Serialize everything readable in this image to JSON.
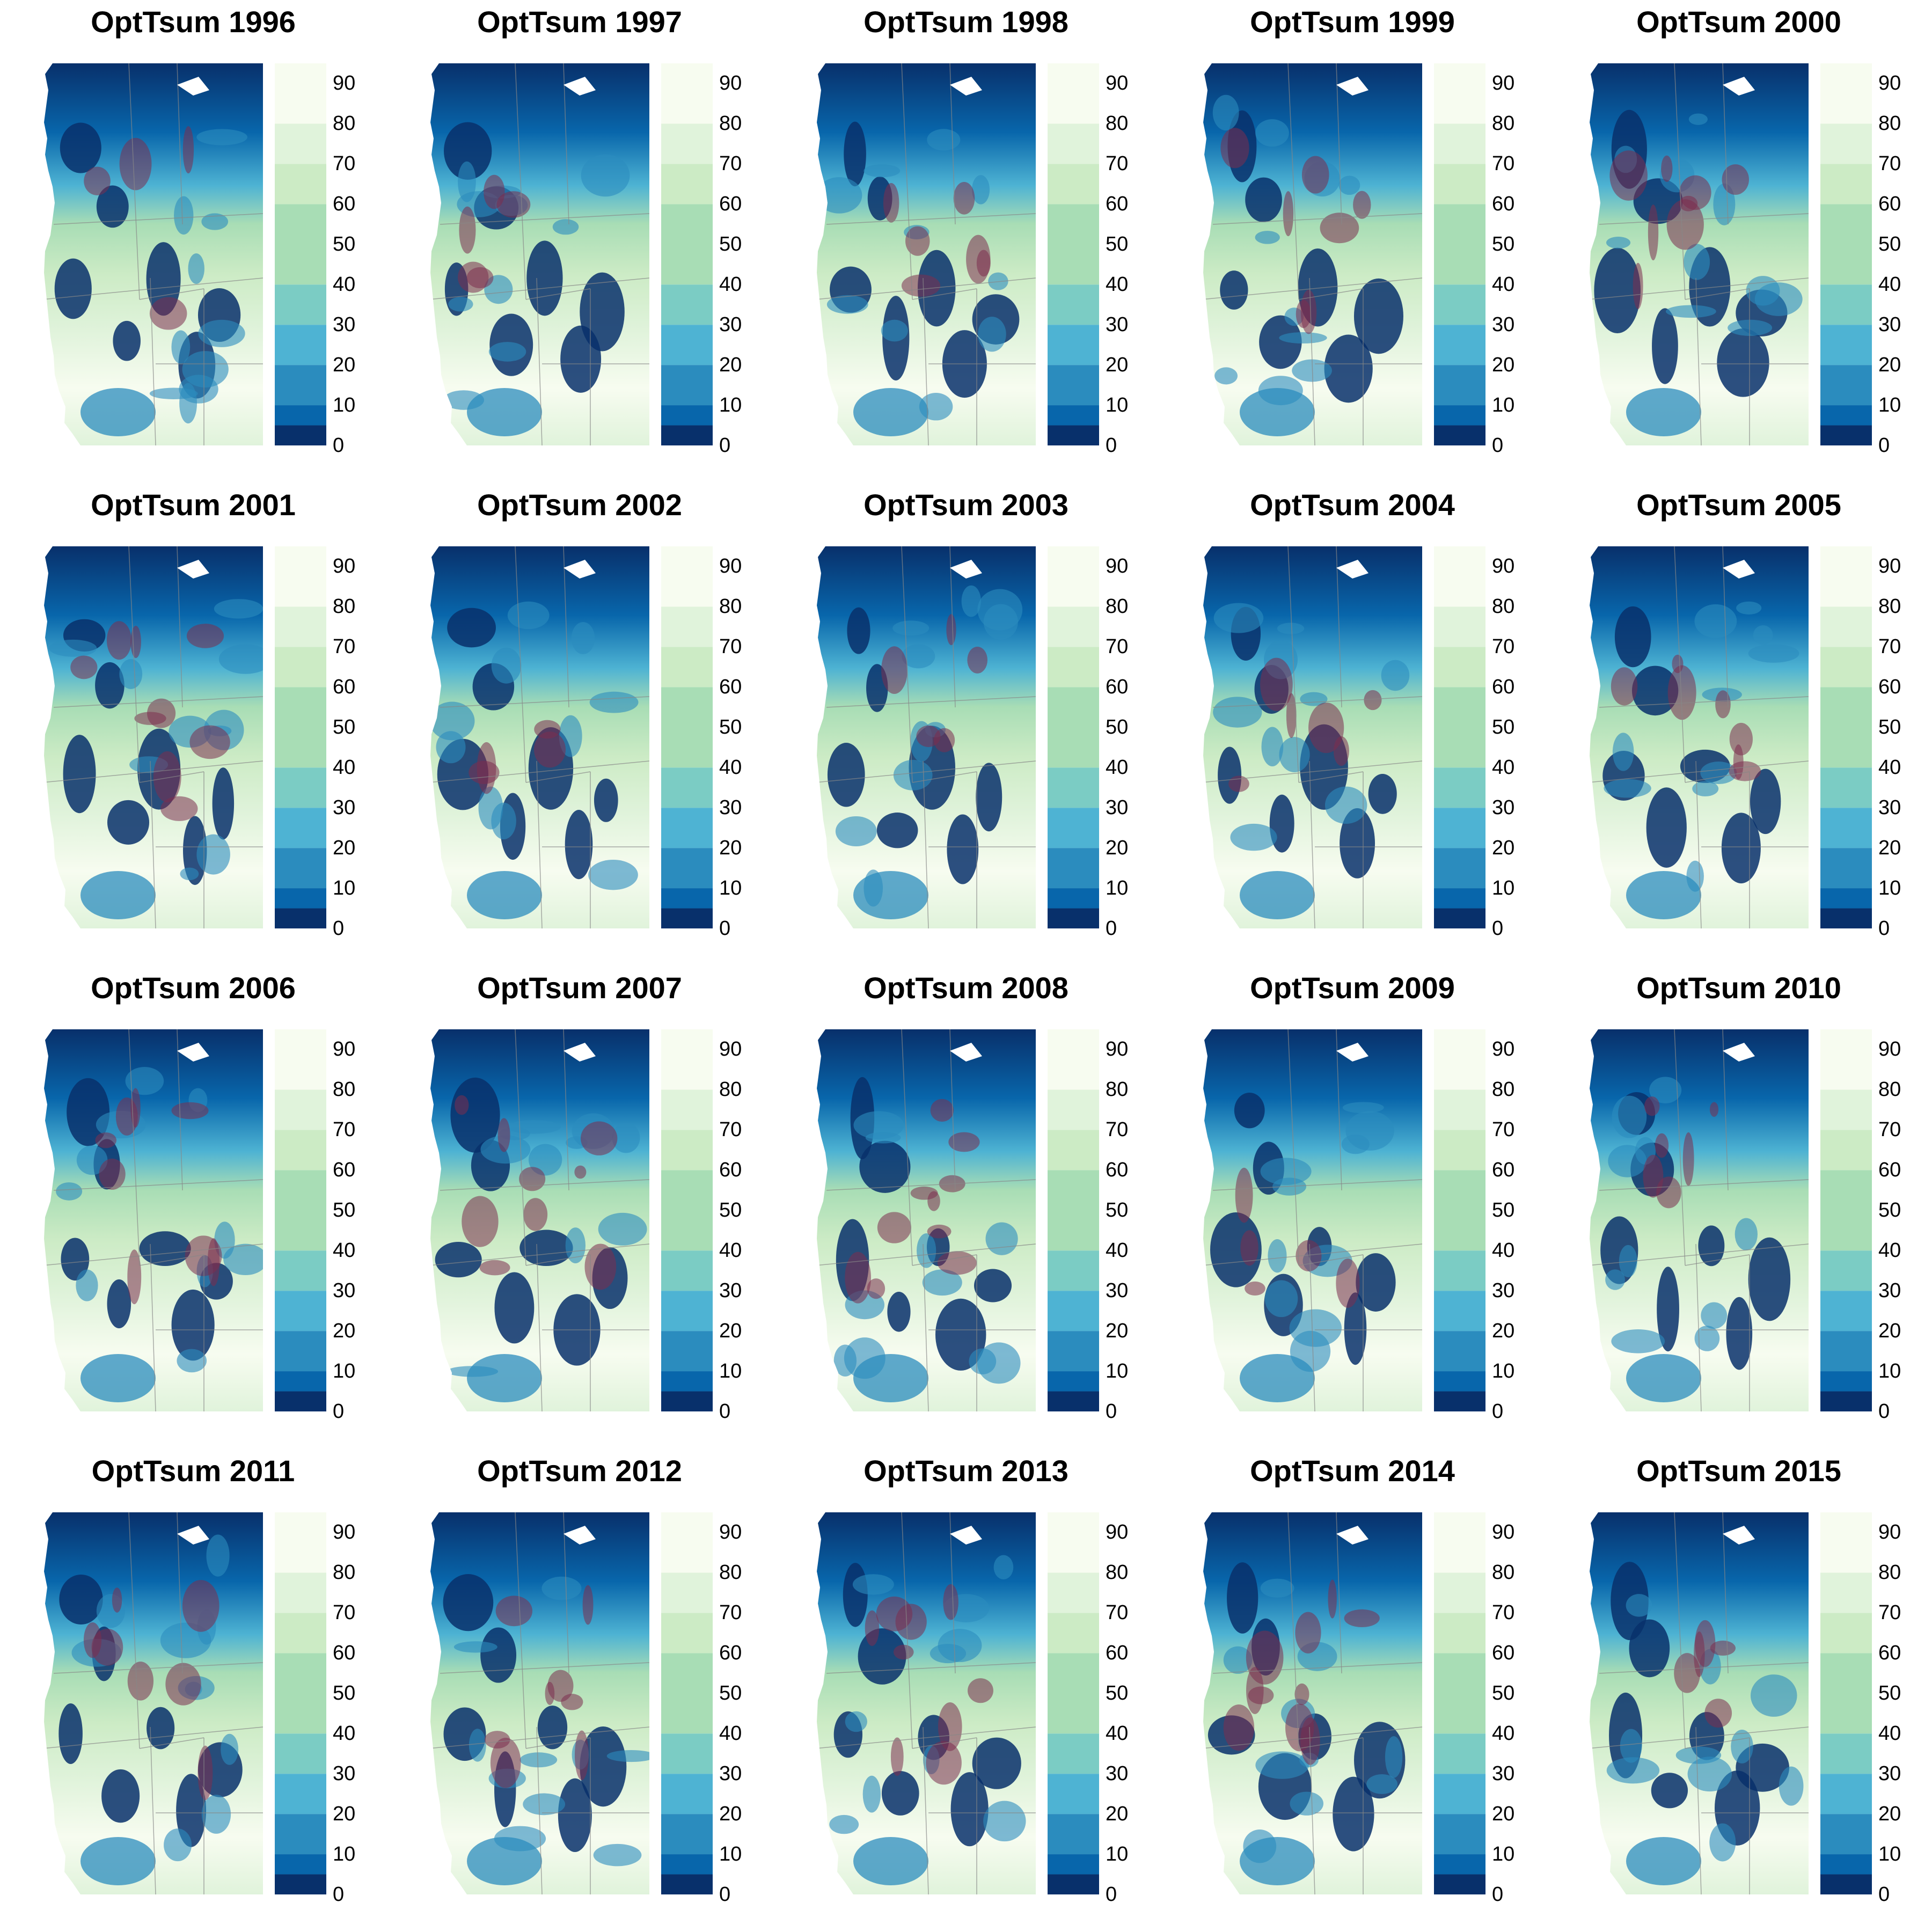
{
  "chart_data": {
    "type": "heatmap",
    "title_prefix": "OptTsum",
    "panels": [
      {
        "title": "OptTsum 1996",
        "year": 1996
      },
      {
        "title": "OptTsum 1997",
        "year": 1997
      },
      {
        "title": "OptTsum 1998",
        "year": 1998
      },
      {
        "title": "OptTsum 1999",
        "year": 1999
      },
      {
        "title": "OptTsum 2000",
        "year": 2000
      },
      {
        "title": "OptTsum 2001",
        "year": 2001
      },
      {
        "title": "OptTsum 2002",
        "year": 2002
      },
      {
        "title": "OptTsum 2003",
        "year": 2003
      },
      {
        "title": "OptTsum 2004",
        "year": 2004
      },
      {
        "title": "OptTsum 2005",
        "year": 2005
      },
      {
        "title": "OptTsum 2006",
        "year": 2006
      },
      {
        "title": "OptTsum 2007",
        "year": 2007
      },
      {
        "title": "OptTsum 2008",
        "year": 2008
      },
      {
        "title": "OptTsum 2009",
        "year": 2009
      },
      {
        "title": "OptTsum 2010",
        "year": 2010
      },
      {
        "title": "OptTsum 2011",
        "year": 2011
      },
      {
        "title": "OptTsum 2012",
        "year": 2012
      },
      {
        "title": "OptTsum 2013",
        "year": 2013
      },
      {
        "title": "OptTsum 2014",
        "year": 2014
      },
      {
        "title": "OptTsum 2015",
        "year": 2015
      }
    ],
    "colorbar": {
      "range": [
        0,
        95
      ],
      "tick_labels": [
        "0",
        "10",
        "20",
        "30",
        "40",
        "50",
        "60",
        "70",
        "80",
        "90"
      ],
      "bins": [
        {
          "from": 0,
          "to": 5,
          "color": "#08306b"
        },
        {
          "from": 5,
          "to": 10,
          "color": "#0866ab"
        },
        {
          "from": 10,
          "to": 20,
          "color": "#2b8cbe"
        },
        {
          "from": 20,
          "to": 30,
          "color": "#4eb3d3"
        },
        {
          "from": 30,
          "to": 40,
          "color": "#7bccc4"
        },
        {
          "from": 40,
          "to": 60,
          "color": "#a8ddb5"
        },
        {
          "from": 60,
          "to": 70,
          "color": "#ccebc5"
        },
        {
          "from": 70,
          "to": 80,
          "color": "#e0f3db"
        },
        {
          "from": 80,
          "to": 95,
          "color": "#f7fcf0"
        }
      ]
    },
    "overlay_color": "#7b2d4f"
  }
}
